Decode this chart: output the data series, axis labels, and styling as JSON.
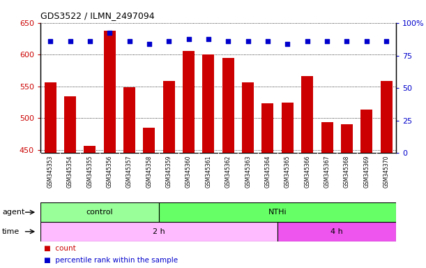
{
  "title": "GDS3522 / ILMN_2497094",
  "samples": [
    "GSM345353",
    "GSM345354",
    "GSM345355",
    "GSM345356",
    "GSM345357",
    "GSM345358",
    "GSM345359",
    "GSM345360",
    "GSM345361",
    "GSM345362",
    "GSM345363",
    "GSM345364",
    "GSM345365",
    "GSM345366",
    "GSM345367",
    "GSM345368",
    "GSM345369",
    "GSM345370"
  ],
  "counts": [
    557,
    534,
    456,
    638,
    549,
    485,
    559,
    606,
    601,
    595,
    557,
    523,
    525,
    566,
    494,
    490,
    514,
    559
  ],
  "percentile_y_left": [
    621,
    621,
    621,
    635,
    621,
    617,
    621,
    625,
    625,
    621,
    621,
    621,
    617,
    621,
    621,
    621,
    621,
    621
  ],
  "ylim_left": [
    445,
    650
  ],
  "ylim_right": [
    0,
    100
  ],
  "yticks_left": [
    450,
    500,
    550,
    600,
    650
  ],
  "yticks_right": [
    0,
    25,
    50,
    75,
    100
  ],
  "ytick_labels_right": [
    "0",
    "25",
    "50",
    "75",
    "100%"
  ],
  "bar_color": "#cc0000",
  "dot_color": "#0000cc",
  "agent_control_label": "control",
  "agent_nthi_label": "NTHi",
  "time_2h_label": "2 h",
  "time_4h_label": "4 h",
  "control_count": 6,
  "nthi_count": 12,
  "time_2h_count": 12,
  "time_4h_count": 6,
  "agent_row_color_control": "#99ff99",
  "agent_row_color_nthi": "#66ff66",
  "time_row_color_2h": "#ffbbff",
  "time_row_color_4h": "#ee55ee",
  "tick_color_left": "#cc0000",
  "tick_color_right": "#0000cc",
  "sample_bg_color": "#c8c8c8",
  "plot_bg_color": "#ffffff",
  "legend_count_color": "#cc0000",
  "legend_pct_color": "#0000cc",
  "bar_width": 0.6
}
